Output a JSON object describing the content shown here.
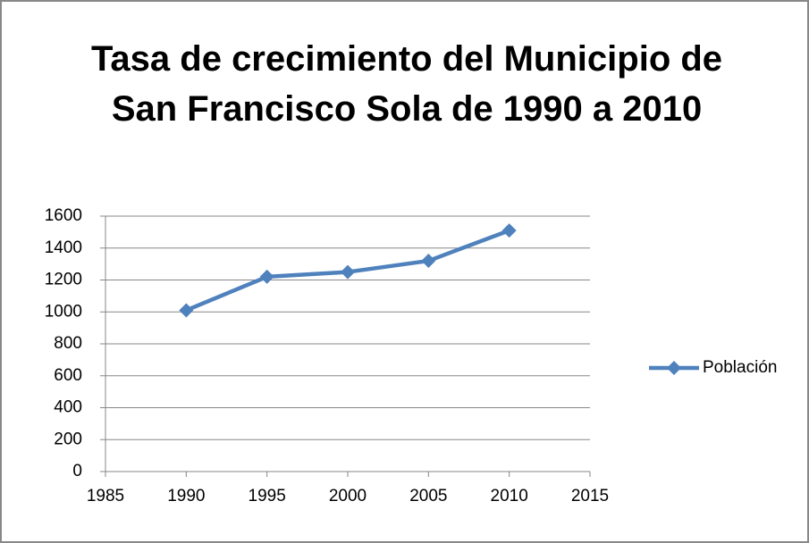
{
  "chart_data": {
    "type": "line",
    "title": "Tasa de crecimiento del Municipio de San Francisco Sola de 1990 a 2010",
    "x": [
      1990,
      1995,
      2000,
      2005,
      2010
    ],
    "series": [
      {
        "name": "Población",
        "color": "#4f81bd",
        "values": [
          1010,
          1220,
          1250,
          1320,
          1510
        ]
      }
    ],
    "xlim": [
      1985,
      2015
    ],
    "xticks": [
      1985,
      1990,
      1995,
      2000,
      2005,
      2010,
      2015
    ],
    "ylim": [
      0,
      1600
    ],
    "yticks": [
      0,
      200,
      400,
      600,
      800,
      1000,
      1200,
      1400,
      1600
    ],
    "grid": true,
    "legend": "right"
  }
}
